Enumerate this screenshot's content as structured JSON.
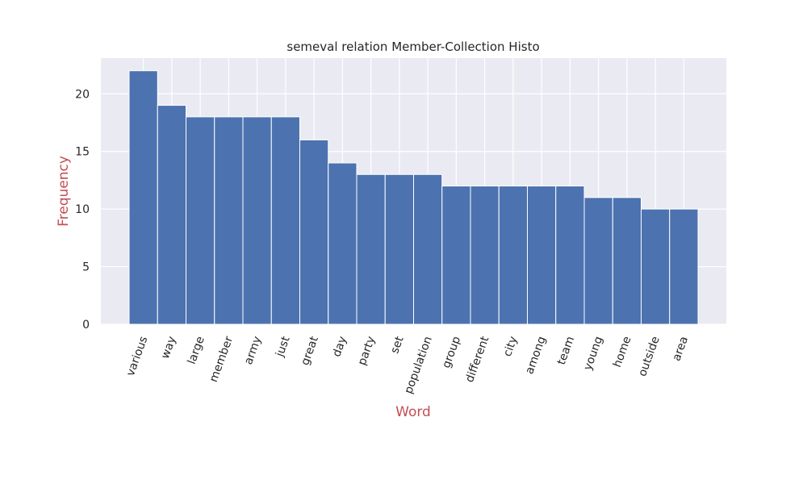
{
  "colors": {
    "background": "#ffffff",
    "plot_bg": "#eaeaf2",
    "grid": "#ffffff",
    "bar": "#4c72b0",
    "bar_edge": "#ffffff",
    "axis_label": "#c44e52",
    "text": "#262626"
  },
  "chart_data": {
    "type": "bar",
    "title": "semeval relation Member-Collection Histo",
    "xlabel": "Word",
    "ylabel": "Frequency",
    "categories": [
      "various",
      "way",
      "large",
      "member",
      "army",
      "just",
      "great",
      "day",
      "party",
      "set",
      "population",
      "group",
      "different",
      "city",
      "among",
      "team",
      "young",
      "home",
      "outside",
      "area"
    ],
    "values": [
      22,
      19,
      18,
      18,
      18,
      18,
      16,
      14,
      13,
      13,
      13,
      12,
      12,
      12,
      12,
      12,
      11,
      11,
      10,
      10
    ],
    "yticks": [
      0,
      5,
      10,
      15,
      20
    ],
    "ylim": [
      0,
      23.1
    ],
    "grid": true,
    "legend": "none",
    "xtick_rotation_deg": 70
  }
}
